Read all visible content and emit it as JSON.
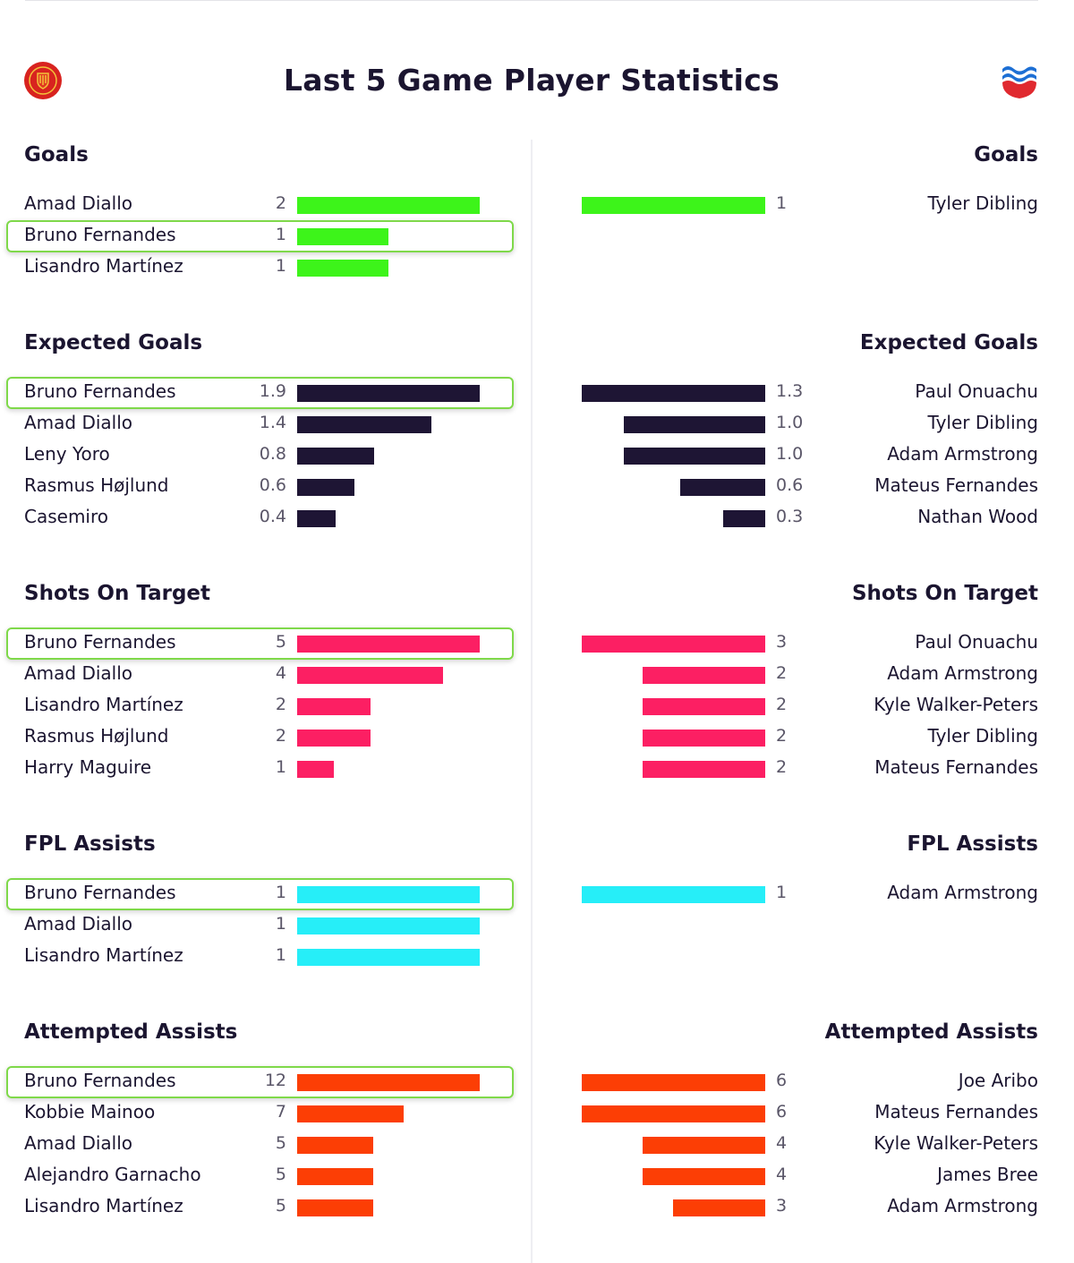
{
  "title": "Last 5 Game Player Statistics",
  "icons": {
    "left_badge": "manchester-united-crest",
    "right_badge": "southampton-crest"
  },
  "colors": {
    "goals": "#3df41a",
    "expected_goals": "#1e1534",
    "shots_on_target": "#fc1f63",
    "fpl_assists": "#26eef8",
    "attempted_assists": "#fc3e05",
    "highlight_border": "#7fd94a"
  },
  "chart_data": [
    {
      "type": "bar",
      "title": "Goals",
      "color_key": "goals",
      "left": [
        {
          "name": "Amad Diallo",
          "label": "2",
          "value": 2
        },
        {
          "name": "Bruno Fernandes",
          "label": "1",
          "value": 1,
          "highlight": true
        },
        {
          "name": "Lisandro Martínez",
          "label": "1",
          "value": 1
        }
      ],
      "right": [
        {
          "name": "Tyler Dibling",
          "label": "1",
          "value": 1
        }
      ]
    },
    {
      "type": "bar",
      "title": "Expected Goals",
      "color_key": "expected_goals",
      "left": [
        {
          "name": "Bruno Fernandes",
          "label": "1.9",
          "value": 1.9,
          "highlight": true
        },
        {
          "name": "Amad Diallo",
          "label": "1.4",
          "value": 1.4
        },
        {
          "name": "Leny Yoro",
          "label": "0.8",
          "value": 0.8
        },
        {
          "name": "Rasmus Højlund",
          "label": "0.6",
          "value": 0.6
        },
        {
          "name": "Casemiro",
          "label": "0.4",
          "value": 0.4
        }
      ],
      "right": [
        {
          "name": "Paul Onuachu",
          "label": "1.3",
          "value": 1.3
        },
        {
          "name": "Tyler Dibling",
          "label": "1.0",
          "value": 1.0
        },
        {
          "name": "Adam Armstrong",
          "label": "1.0",
          "value": 1.0
        },
        {
          "name": "Mateus Fernandes",
          "label": "0.6",
          "value": 0.6
        },
        {
          "name": "Nathan Wood",
          "label": "0.3",
          "value": 0.3
        }
      ]
    },
    {
      "type": "bar",
      "title": "Shots On Target",
      "color_key": "shots_on_target",
      "left": [
        {
          "name": "Bruno Fernandes",
          "label": "5",
          "value": 5,
          "highlight": true
        },
        {
          "name": "Amad Diallo",
          "label": "4",
          "value": 4
        },
        {
          "name": "Lisandro Martínez",
          "label": "2",
          "value": 2
        },
        {
          "name": "Rasmus Højlund",
          "label": "2",
          "value": 2
        },
        {
          "name": "Harry Maguire",
          "label": "1",
          "value": 1
        }
      ],
      "right": [
        {
          "name": "Paul Onuachu",
          "label": "3",
          "value": 3
        },
        {
          "name": "Adam Armstrong",
          "label": "2",
          "value": 2
        },
        {
          "name": "Kyle Walker-Peters",
          "label": "2",
          "value": 2
        },
        {
          "name": "Tyler Dibling",
          "label": "2",
          "value": 2
        },
        {
          "name": "Mateus Fernandes",
          "label": "2",
          "value": 2
        }
      ]
    },
    {
      "type": "bar",
      "title": "FPL Assists",
      "color_key": "fpl_assists",
      "left": [
        {
          "name": "Bruno Fernandes",
          "label": "1",
          "value": 1,
          "highlight": true
        },
        {
          "name": "Amad Diallo",
          "label": "1",
          "value": 1
        },
        {
          "name": "Lisandro Martínez",
          "label": "1",
          "value": 1
        }
      ],
      "right": [
        {
          "name": "Adam Armstrong",
          "label": "1",
          "value": 1
        }
      ]
    },
    {
      "type": "bar",
      "title": "Attempted Assists",
      "color_key": "attempted_assists",
      "left": [
        {
          "name": "Bruno Fernandes",
          "label": "12",
          "value": 12,
          "highlight": true
        },
        {
          "name": "Kobbie Mainoo",
          "label": "7",
          "value": 7
        },
        {
          "name": "Amad Diallo",
          "label": "5",
          "value": 5
        },
        {
          "name": "Alejandro Garnacho",
          "label": "5",
          "value": 5
        },
        {
          "name": "Lisandro Martínez",
          "label": "5",
          "value": 5
        }
      ],
      "right": [
        {
          "name": "Joe Aribo",
          "label": "6",
          "value": 6
        },
        {
          "name": "Mateus Fernandes",
          "label": "6",
          "value": 6
        },
        {
          "name": "Kyle Walker-Peters",
          "label": "4",
          "value": 4
        },
        {
          "name": "James Bree",
          "label": "4",
          "value": 4
        },
        {
          "name": "Adam Armstrong",
          "label": "3",
          "value": 3
        }
      ]
    }
  ]
}
